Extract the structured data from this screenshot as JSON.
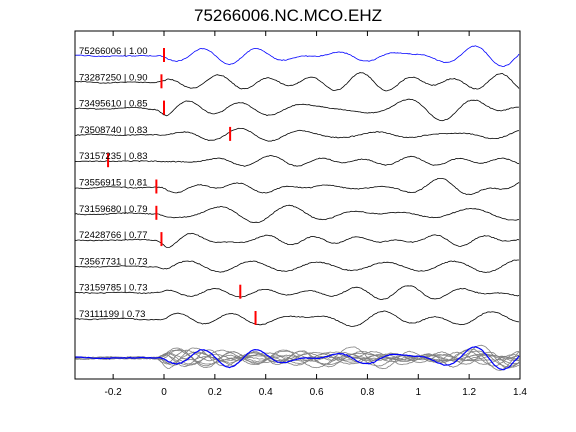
{
  "chart_data": {
    "type": "line",
    "title": "75266006.NC.MCO.EHZ",
    "xlim": [
      -0.35,
      1.4
    ],
    "x_ticks": [
      -0.2,
      0,
      0.2,
      0.4,
      0.6,
      0.8,
      1,
      1.2,
      1.4
    ],
    "x_tick_labels": [
      "-0.2",
      "0",
      "0.2",
      "0.4",
      "0.6",
      "0.8",
      "1",
      "1.2",
      "1.4"
    ],
    "grid": false,
    "reference_color": "#0000ff",
    "trace_color": "#000000",
    "stack_color": "#808080",
    "pick_color": "#ff0000",
    "traces": [
      {
        "label": "75266006 | 1.00",
        "pick": 0.0,
        "reference": true
      },
      {
        "label": "73287250 | 0.90",
        "pick": -0.01
      },
      {
        "label": "73495610 | 0.85",
        "pick": 0.0
      },
      {
        "label": "73508740 | 0.83",
        "pick": 0.26
      },
      {
        "label": "73157235 | 0.83",
        "pick": -0.22
      },
      {
        "label": "73556915 | 0.81",
        "pick": -0.03
      },
      {
        "label": "73159680 | 0.79",
        "pick": -0.03
      },
      {
        "label": "72428766 | 0.77",
        "pick": -0.01
      },
      {
        "label": "73567731 | 0.73",
        "pick": null
      },
      {
        "label": "73159785 | 0.73",
        "pick": 0.3
      },
      {
        "label": "73111199 | 0.73",
        "pick": 0.36
      }
    ]
  }
}
